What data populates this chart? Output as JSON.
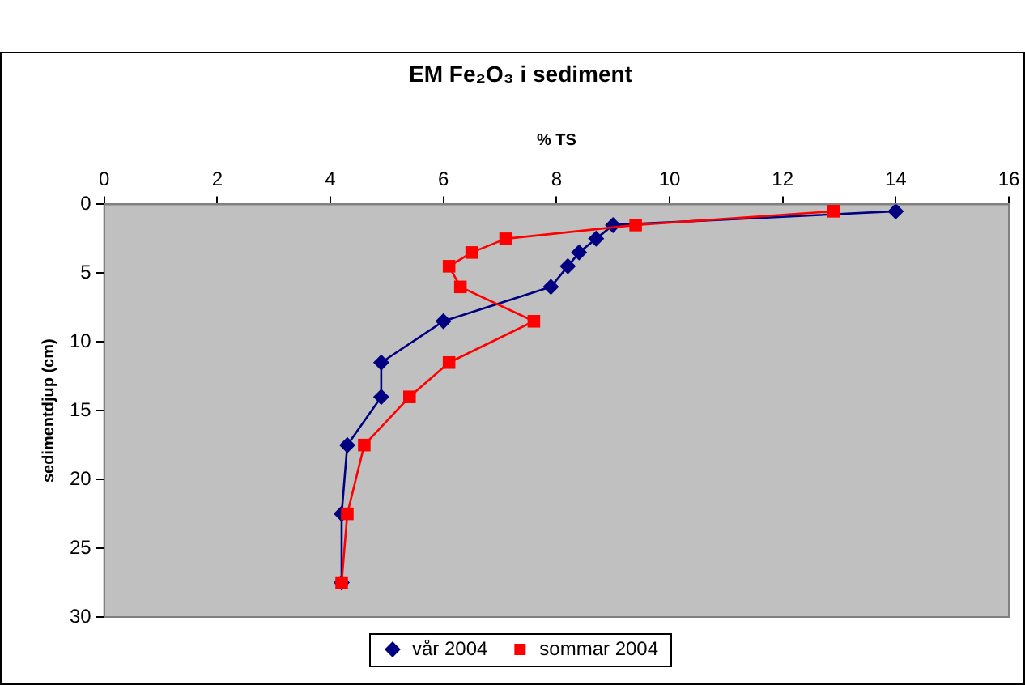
{
  "chart_data": {
    "type": "line",
    "title": "EM Fe₂O₃ i sediment",
    "xlabel": "% TS",
    "ylabel": "sedimentdjup (cm)",
    "xlim": [
      0,
      16
    ],
    "xticks": [
      0,
      2,
      4,
      6,
      8,
      10,
      12,
      14,
      16
    ],
    "ylim": [
      30,
      0
    ],
    "yticks": [
      0,
      5,
      10,
      15,
      20,
      25,
      30
    ],
    "grid": false,
    "legend": "bottom",
    "series": [
      {
        "name": "vår 2004",
        "color": "#000080",
        "marker": "diamond",
        "x": [
          14.0,
          9.0,
          8.7,
          8.4,
          8.2,
          7.9,
          6.0,
          4.9,
          4.9,
          4.3,
          4.2,
          4.2
        ],
        "values": [
          0.5,
          1.5,
          2.5,
          3.5,
          4.5,
          6,
          8.5,
          11.5,
          14,
          17.5,
          22.5,
          27.5
        ]
      },
      {
        "name": "sommar 2004",
        "color": "#ff0000",
        "marker": "square",
        "x": [
          12.9,
          9.4,
          7.1,
          6.5,
          6.1,
          6.3,
          7.6,
          6.1,
          5.4,
          4.6,
          4.3,
          4.2
        ],
        "values": [
          0.5,
          1.5,
          2.5,
          3.5,
          4.5,
          6,
          8.5,
          11.5,
          14,
          17.5,
          22.5,
          27.5
        ]
      }
    ]
  }
}
